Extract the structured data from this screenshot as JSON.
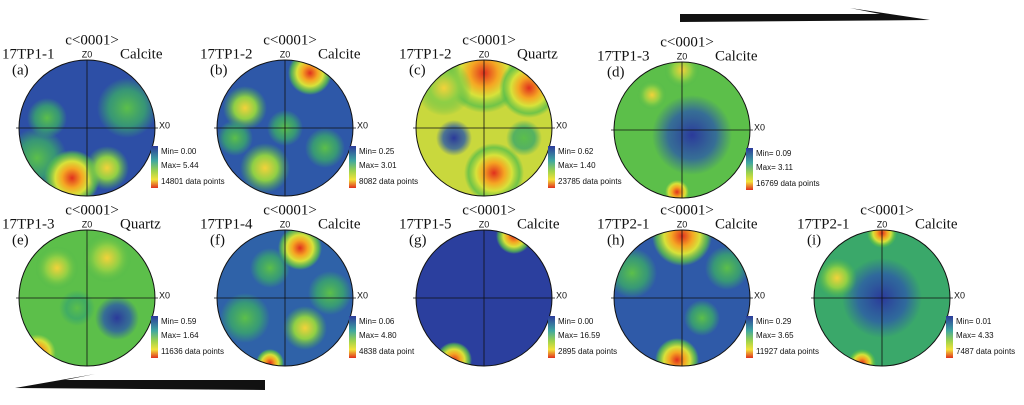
{
  "panels": [
    {
      "label": "(a)",
      "sample": "17TP1-1",
      "axis": "c<0001>",
      "mineral": "Calcite",
      "z": "Z0",
      "x": "X0",
      "min": "Min= 0.00",
      "max": "Max= 5.44",
      "points": "14801 data points"
    },
    {
      "label": "(b)",
      "sample": "17TP1-2",
      "axis": "c<0001>",
      "mineral": "Calcite",
      "z": "Z0",
      "x": "X0",
      "min": "Min= 0.25",
      "max": "Max= 3.01",
      "points": "8082 data points"
    },
    {
      "label": "(c)",
      "sample": "17TP1-2",
      "axis": "c<0001>",
      "mineral": "Quartz",
      "z": "Z0",
      "x": "X0",
      "min": "Min= 0.62",
      "max": "Max= 1.40",
      "points": "23785 data points"
    },
    {
      "label": "(d)",
      "sample": "17TP1-3",
      "axis": "c<0001>",
      "mineral": "Calcite",
      "z": "Z0",
      "x": "X0",
      "min": "Min= 0.09",
      "max": "Max= 3.11",
      "points": "16769 data points"
    },
    {
      "label": "(e)",
      "sample": "17TP1-3",
      "axis": "c<0001>",
      "mineral": "Quartz",
      "z": "Z0",
      "x": "X0",
      "min": "Min= 0.59",
      "max": "Max= 1.64",
      "points": "11636 data points"
    },
    {
      "label": "(f)",
      "sample": "17TP1-4",
      "axis": "c<0001>",
      "mineral": "Calcite",
      "z": "Z0",
      "x": "X0",
      "min": "Min= 0.06",
      "max": "Max= 4.80",
      "points": "4838 data point"
    },
    {
      "label": "(g)",
      "sample": "17TP1-5",
      "axis": "c<0001>",
      "mineral": "Calcite",
      "z": "Z0",
      "x": "X0",
      "min": "Min= 0.00",
      "max": "Max= 16.59",
      "points": "2895 data points"
    },
    {
      "label": "(h)",
      "sample": "17TP2-1",
      "axis": "c<0001>",
      "mineral": "Calcite",
      "z": "Z0",
      "x": "X0",
      "min": "Min= 0.29",
      "max": "Max= 3.65",
      "points": "11927 data points"
    },
    {
      "label": "(i)",
      "sample": "17TP2-1",
      "axis": "c<0001>",
      "mineral": "Calcite",
      "z": "Z0",
      "x": "X0",
      "min": "Min= 0.01",
      "max": "Max= 4.33",
      "points": "7487 data points"
    }
  ]
}
